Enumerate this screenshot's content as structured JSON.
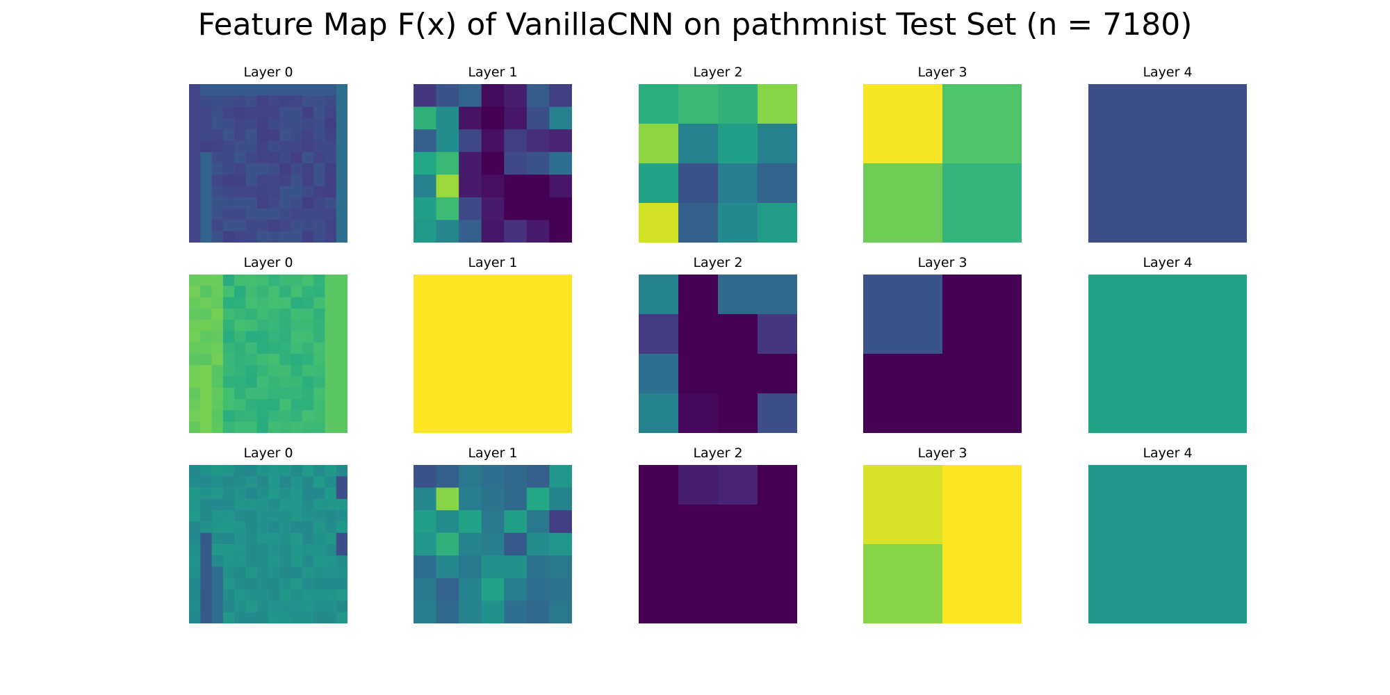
{
  "chart_data": {
    "type": "heatmap",
    "title": "Feature Map F(x) of VanillaCNN on pathmnist Test Set (n = 7180)",
    "colormap": "viridis",
    "value_range": [
      0,
      1
    ],
    "colors": {
      "viridis_low": "#440154",
      "viridis_high": "#fde725"
    },
    "rows": [
      {
        "panels": [
          {
            "title": "Layer 0",
            "size": 14,
            "base": 0.22,
            "pattern": "row1-l0"
          },
          {
            "title": "Layer 1",
            "values": [
              [
                0.16,
                0.26,
                0.32,
                0.03,
                0.08,
                0.29,
                0.18
              ],
              [
                0.64,
                0.48,
                0.05,
                0.0,
                0.06,
                0.24,
                0.43
              ],
              [
                0.3,
                0.48,
                0.22,
                0.04,
                0.18,
                0.13,
                0.1
              ],
              [
                0.6,
                0.67,
                0.07,
                0.0,
                0.22,
                0.26,
                0.36
              ],
              [
                0.43,
                0.85,
                0.07,
                0.04,
                0.0,
                0.0,
                0.06
              ],
              [
                0.56,
                0.68,
                0.22,
                0.07,
                0.0,
                0.0,
                0.0
              ],
              [
                0.54,
                0.45,
                0.3,
                0.06,
                0.14,
                0.07,
                0.0
              ]
            ]
          },
          {
            "title": "Layer 2",
            "values": [
              [
                0.63,
                0.67,
                0.64,
                0.82
              ],
              [
                0.83,
                0.43,
                0.56,
                0.43
              ],
              [
                0.58,
                0.26,
                0.42,
                0.32
              ],
              [
                0.93,
                0.31,
                0.47,
                0.55
              ]
            ]
          },
          {
            "title": "Layer 3",
            "values": [
              [
                0.99,
                0.72
              ],
              [
                0.78,
                0.65
              ]
            ]
          },
          {
            "title": "Layer 4",
            "values": [
              [
                0.24
              ]
            ]
          }
        ]
      },
      {
        "panels": [
          {
            "title": "Layer 0",
            "size": 14,
            "base": 0.66,
            "pattern": "row2-l0"
          },
          {
            "title": "Layer 1",
            "values": [
              [
                1.0
              ]
            ]
          },
          {
            "title": "Layer 2",
            "values": [
              [
                0.44,
                0.0,
                0.34,
                0.34
              ],
              [
                0.17,
                0.0,
                0.0,
                0.16
              ],
              [
                0.36,
                0.0,
                0.0,
                0.0
              ],
              [
                0.44,
                0.02,
                0.0,
                0.24
              ]
            ]
          },
          {
            "title": "Layer 3",
            "values": [
              [
                0.26,
                0.0
              ],
              [
                0.0,
                0.0
              ]
            ]
          },
          {
            "title": "Layer 4",
            "values": [
              [
                0.58
              ]
            ]
          }
        ]
      },
      {
        "panels": [
          {
            "title": "Layer 0",
            "size": 14,
            "base": 0.5,
            "pattern": "row3-l0"
          },
          {
            "title": "Layer 1",
            "values": [
              [
                0.26,
                0.3,
                0.4,
                0.36,
                0.34,
                0.3,
                0.52
              ],
              [
                0.46,
                0.82,
                0.42,
                0.38,
                0.34,
                0.6,
                0.44
              ],
              [
                0.56,
                0.48,
                0.58,
                0.4,
                0.56,
                0.4,
                0.18
              ],
              [
                0.52,
                0.64,
                0.44,
                0.42,
                0.28,
                0.48,
                0.52
              ],
              [
                0.36,
                0.46,
                0.4,
                0.5,
                0.5,
                0.38,
                0.4
              ],
              [
                0.4,
                0.32,
                0.44,
                0.58,
                0.42,
                0.36,
                0.38
              ],
              [
                0.42,
                0.34,
                0.44,
                0.5,
                0.36,
                0.34,
                0.4
              ]
            ]
          },
          {
            "title": "Layer 2",
            "values": [
              [
                0.0,
                0.08,
                0.1,
                0.0
              ],
              [
                0.0,
                0.0,
                0.0,
                0.0
              ],
              [
                0.0,
                0.0,
                0.0,
                0.0
              ],
              [
                0.0,
                0.0,
                0.0,
                0.0
              ]
            ]
          },
          {
            "title": "Layer 3",
            "values": [
              [
                0.94,
                1.0
              ],
              [
                0.82,
                1.0
              ]
            ]
          },
          {
            "title": "Layer 4",
            "values": [
              [
                0.52
              ]
            ]
          }
        ]
      }
    ]
  }
}
